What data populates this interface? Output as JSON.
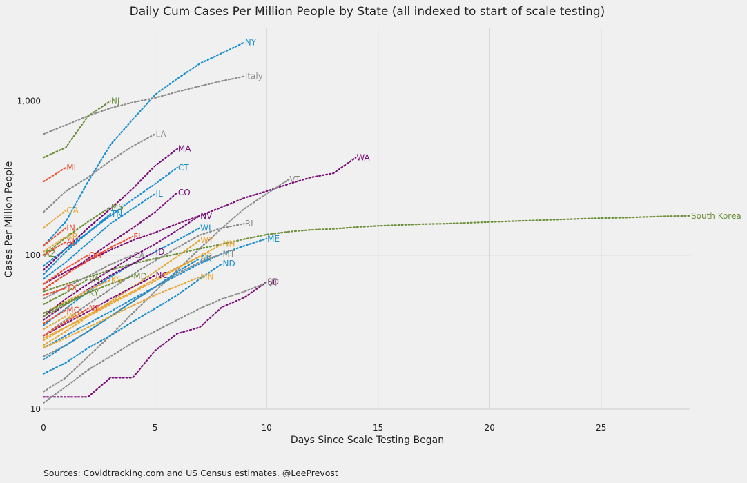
{
  "source_note": "Sources: Covidtracking.com and US Census estimates. @LeePrevost",
  "chart_data": {
    "type": "line",
    "title": "Daily Cum Cases Per Million People by State (all indexed to start of scale testing)",
    "xlabel": "Days Since Scale Testing Began",
    "ylabel": "Cases Per Million People",
    "yscale": "log",
    "xlim": [
      0,
      29
    ],
    "ylim": [
      10,
      3000
    ],
    "xticks": [
      0,
      5,
      10,
      15,
      20,
      25
    ],
    "yticks": [
      10,
      100,
      1000
    ],
    "ytick_labels": [
      "10",
      "100",
      "1,000"
    ],
    "grid": true,
    "line_style": "dotted",
    "series": [
      {
        "name": "NY",
        "color": "#1a8fcf",
        "x": [
          0,
          1,
          2,
          3,
          4,
          5,
          6,
          7,
          8,
          9
        ],
        "values": [
          115,
          165,
          300,
          520,
          760,
          1100,
          1400,
          1750,
          2050,
          2400
        ]
      },
      {
        "name": "Italy",
        "color": "#8c8c8c",
        "x": [
          0,
          1,
          2,
          3,
          4,
          5,
          6,
          7,
          8,
          9
        ],
        "values": [
          610,
          700,
          800,
          900,
          980,
          1050,
          1150,
          1250,
          1350,
          1450
        ]
      },
      {
        "name": "NJ",
        "color": "#6d8f3a",
        "x": [
          0,
          1,
          2,
          3
        ],
        "values": [
          430,
          500,
          800,
          1000
        ]
      },
      {
        "name": "LA",
        "color": "#8c8c8c",
        "x": [
          0,
          1,
          2,
          3,
          4,
          5
        ],
        "values": [
          190,
          260,
          320,
          410,
          510,
          610
        ]
      },
      {
        "name": "MA",
        "color": "#7a0e7a",
        "x": [
          0,
          1,
          2,
          3,
          4,
          5,
          6
        ],
        "values": [
          80,
          110,
          150,
          200,
          270,
          380,
          490
        ]
      },
      {
        "name": "WA",
        "color": "#7a0e7a",
        "x": [
          0,
          1,
          2,
          3,
          4,
          5,
          6,
          7,
          8,
          9,
          10,
          11,
          12,
          13,
          14
        ],
        "values": [
          65,
          78,
          92,
          108,
          125,
          140,
          160,
          180,
          205,
          235,
          260,
          290,
          320,
          340,
          430
        ]
      },
      {
        "name": "MI",
        "color": "#ee4d2d",
        "x": [
          0,
          1
        ],
        "values": [
          300,
          370
        ]
      },
      {
        "name": "CT",
        "color": "#1a8fcf",
        "x": [
          0,
          1,
          2,
          3,
          4,
          5,
          6
        ],
        "values": [
          85,
          110,
          140,
          180,
          230,
          290,
          370
        ]
      },
      {
        "name": "VT",
        "color": "#8c8c8c",
        "x": [
          0,
          1,
          2,
          3,
          4,
          5,
          6,
          7,
          8,
          9,
          10,
          11
        ],
        "values": [
          13,
          16,
          22,
          30,
          42,
          58,
          80,
          110,
          150,
          200,
          250,
          310
        ]
      },
      {
        "name": "CO",
        "color": "#7a0e7a",
        "x": [
          0,
          1,
          2,
          3,
          4,
          5,
          6
        ],
        "values": [
          60,
          75,
          95,
          120,
          150,
          190,
          255
        ]
      },
      {
        "name": "IL",
        "color": "#1a8fcf",
        "x": [
          0,
          1,
          2,
          3,
          4,
          5
        ],
        "values": [
          70,
          90,
          120,
          160,
          200,
          250
        ]
      },
      {
        "name": "GA",
        "color": "#e8a838",
        "x": [
          0,
          1
        ],
        "values": [
          150,
          195
        ]
      },
      {
        "name": "MS",
        "color": "#6d8f3a",
        "x": [
          0,
          1,
          2,
          3
        ],
        "values": [
          100,
          130,
          165,
          205
        ]
      },
      {
        "name": "TN",
        "color": "#1a8fcf",
        "x": [
          0,
          1,
          2,
          3
        ],
        "values": [
          75,
          105,
          140,
          185
        ]
      },
      {
        "name": "South Korea",
        "color": "#6d8f3a",
        "x": [
          0,
          1,
          2,
          3,
          4,
          5,
          6,
          7,
          8,
          9,
          10,
          11,
          12,
          13,
          14,
          15,
          16,
          17,
          18,
          19,
          20,
          21,
          22,
          23,
          24,
          25,
          26,
          27,
          28,
          29
        ],
        "values": [
          58,
          65,
          72,
          80,
          88,
          95,
          102,
          110,
          118,
          127,
          136,
          142,
          146,
          148,
          152,
          155,
          157,
          159,
          160,
          162,
          164,
          166,
          168,
          170,
          172,
          174,
          175,
          177,
          179,
          180
        ]
      },
      {
        "name": "NV",
        "color": "#7a0e7a",
        "x": [
          0,
          1,
          2,
          3,
          4,
          5,
          6,
          7
        ],
        "values": [
          40,
          52,
          65,
          80,
          98,
          118,
          145,
          180
        ]
      },
      {
        "name": "RI",
        "color": "#8c8c8c",
        "x": [
          0,
          1,
          2,
          3,
          4,
          5,
          6,
          7,
          8,
          9
        ],
        "values": [
          30,
          38,
          48,
          60,
          75,
          92,
          112,
          135,
          150,
          160
        ]
      },
      {
        "name": "WI",
        "color": "#1a8fcf",
        "x": [
          0,
          1,
          2,
          3,
          4,
          5,
          6,
          7
        ],
        "values": [
          35,
          45,
          58,
          72,
          88,
          105,
          125,
          150
        ]
      },
      {
        "name": "IN",
        "color": "#ee4d2d",
        "x": [
          0,
          1
        ],
        "values": [
          115,
          150
        ]
      },
      {
        "name": "AR",
        "color": "#e8a838",
        "x": [
          0,
          1
        ],
        "values": [
          105,
          132
        ]
      },
      {
        "name": "AL",
        "color": "#ee4d2d",
        "x": [
          0,
          1
        ],
        "values": [
          100,
          122
        ]
      },
      {
        "name": "ME",
        "color": "#1a8fcf",
        "x": [
          0,
          1,
          2,
          3,
          4,
          5,
          6,
          7,
          8,
          9,
          10
        ],
        "values": [
          25,
          30,
          36,
          43,
          52,
          62,
          74,
          88,
          102,
          115,
          128
        ]
      },
      {
        "name": "FL",
        "color": "#ee4d2d",
        "x": [
          0,
          1,
          2,
          3,
          4
        ],
        "values": [
          60,
          75,
          92,
          112,
          132
        ]
      },
      {
        "name": "WY",
        "color": "#e8a838",
        "x": [
          0,
          1,
          2,
          3,
          4,
          5,
          6,
          7
        ],
        "values": [
          26,
          32,
          40,
          50,
          62,
          78,
          98,
          125
        ]
      },
      {
        "name": "NH",
        "color": "#e8a838",
        "x": [
          0,
          1,
          2,
          3,
          4,
          5,
          6,
          7,
          8
        ],
        "values": [
          28,
          34,
          41,
          49,
          58,
          70,
          83,
          98,
          118
        ]
      },
      {
        "name": "AZ",
        "color": "#6d8f3a",
        "x": [
          0
        ],
        "values": [
          102
        ]
      },
      {
        "name": "OH",
        "color": "#ee4d2d",
        "x": [
          0,
          1,
          2
        ],
        "values": [
          65,
          82,
          100
        ]
      },
      {
        "name": "CA",
        "color": "#8c8c8c",
        "x": [
          0,
          1,
          2,
          3,
          4
        ],
        "values": [
          52,
          62,
          73,
          87,
          100
        ]
      },
      {
        "name": "ID",
        "color": "#7a0e7a",
        "x": [
          0,
          1,
          2,
          3,
          4,
          5
        ],
        "values": [
          38,
          48,
          60,
          74,
          88,
          105
        ]
      },
      {
        "name": "MT",
        "color": "#8c8c8c",
        "x": [
          0,
          1,
          2,
          3,
          4,
          5,
          6,
          7,
          8
        ],
        "values": [
          22,
          26,
          32,
          40,
          50,
          62,
          76,
          90,
          102
        ]
      },
      {
        "name": "OR",
        "color": "#e8a838",
        "x": [
          0,
          1,
          2,
          3,
          4,
          5,
          6,
          7
        ],
        "values": [
          29,
          34,
          40,
          48,
          57,
          68,
          82,
          98
        ]
      },
      {
        "name": "AK",
        "color": "#1a8fcf",
        "x": [
          0,
          1,
          2,
          3,
          4,
          5,
          6,
          7
        ],
        "values": [
          21,
          26,
          32,
          40,
          50,
          62,
          78,
          95
        ]
      },
      {
        "name": "ND",
        "color": "#1a8fcf",
        "x": [
          0,
          1,
          2,
          3,
          4,
          5,
          6,
          7,
          8
        ],
        "values": [
          17,
          20,
          25,
          30,
          37,
          45,
          55,
          70,
          88
        ]
      },
      {
        "name": "VA",
        "color": "#6d8f3a",
        "x": [
          0,
          1,
          2
        ],
        "values": [
          48,
          57,
          70
        ]
      },
      {
        "name": "KS",
        "color": "#e8a838",
        "x": [
          0,
          1,
          2,
          3
        ],
        "values": [
          42,
          50,
          59,
          69
        ]
      },
      {
        "name": "MD",
        "color": "#6d8f3a",
        "x": [
          0,
          1,
          2,
          3,
          4
        ],
        "values": [
          40,
          48,
          57,
          65,
          73
        ]
      },
      {
        "name": "NC",
        "color": "#7a0e7a",
        "x": [
          0,
          1,
          2,
          3,
          4,
          5
        ],
        "values": [
          30,
          36,
          43,
          52,
          62,
          74
        ]
      },
      {
        "name": "MN",
        "color": "#e8a838",
        "x": [
          0,
          1,
          2,
          3,
          4,
          5,
          6,
          7
        ],
        "values": [
          25,
          29,
          34,
          40,
          47,
          55,
          63,
          72
        ]
      },
      {
        "name": "SD",
        "color": "#7a0e7a",
        "x": [
          0,
          1,
          2,
          3,
          4,
          5,
          6,
          7,
          8,
          9,
          10
        ],
        "values": [
          12,
          12,
          12,
          16,
          16,
          24,
          31,
          34,
          46,
          53,
          67
        ]
      },
      {
        "name": "UT",
        "color": "#8c8c8c",
        "x": [
          0,
          1,
          2,
          3,
          4,
          5,
          6,
          7,
          8,
          9,
          10
        ],
        "values": [
          11,
          14,
          18,
          22,
          27,
          32,
          38,
          45,
          52,
          58,
          66
        ]
      },
      {
        "name": "TX",
        "color": "#ee4d2d",
        "x": [
          0,
          1
        ],
        "values": [
          55,
          61
        ]
      },
      {
        "name": "KY",
        "color": "#6d8f3a",
        "x": [
          0,
          1,
          2
        ],
        "values": [
          42,
          49,
          57
        ]
      },
      {
        "name": "NE",
        "color": "#ee4d2d",
        "x": [
          0,
          1,
          2
        ],
        "values": [
          30,
          37,
          45
        ]
      },
      {
        "name": "MO",
        "color": "#ee4d2d",
        "x": [
          0,
          1
        ],
        "values": [
          36,
          44
        ]
      },
      {
        "name": "WV",
        "color": "#e8a838",
        "x": [
          0,
          1
        ],
        "values": [
          33,
          40
        ]
      }
    ]
  }
}
